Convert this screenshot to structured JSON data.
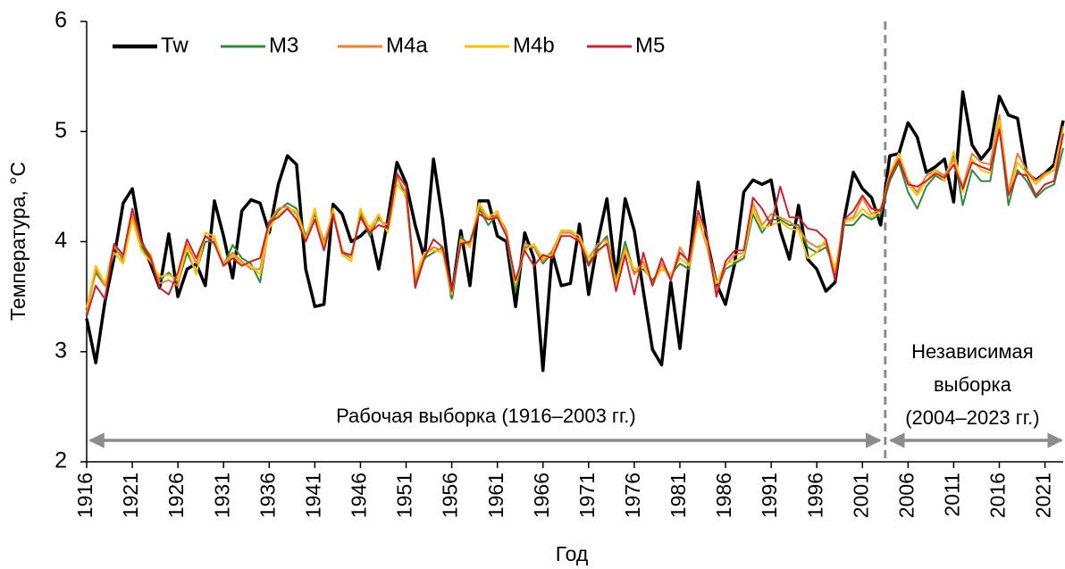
{
  "chart_data": {
    "type": "line",
    "y_label": "Температура, °C",
    "x_label": "Год",
    "x": [
      1916,
      1917,
      1918,
      1919,
      1920,
      1921,
      1922,
      1923,
      1924,
      1925,
      1926,
      1927,
      1928,
      1929,
      1930,
      1931,
      1932,
      1933,
      1934,
      1935,
      1936,
      1937,
      1938,
      1939,
      1940,
      1941,
      1942,
      1943,
      1944,
      1945,
      1946,
      1947,
      1948,
      1949,
      1950,
      1951,
      1952,
      1953,
      1954,
      1955,
      1956,
      1957,
      1958,
      1959,
      1960,
      1961,
      1962,
      1963,
      1964,
      1965,
      1966,
      1967,
      1968,
      1969,
      1970,
      1971,
      1972,
      1973,
      1974,
      1975,
      1976,
      1977,
      1978,
      1979,
      1980,
      1981,
      1982,
      1983,
      1984,
      1985,
      1986,
      1987,
      1988,
      1989,
      1990,
      1991,
      1992,
      1993,
      1994,
      1995,
      1996,
      1997,
      1998,
      1999,
      2000,
      2001,
      2002,
      2003,
      2004,
      2005,
      2006,
      2007,
      2008,
      2009,
      2010,
      2011,
      2012,
      2013,
      2014,
      2015,
      2016,
      2017,
      2018,
      2019,
      2020,
      2021,
      2022,
      2023
    ],
    "series": [
      {
        "name": "Tw",
        "color": "#000000",
        "width": 3.5,
        "values": [
          3.3,
          2.9,
          3.45,
          3.85,
          4.35,
          4.48,
          4.0,
          3.8,
          3.58,
          4.07,
          3.5,
          3.75,
          3.8,
          3.6,
          4.37,
          4.05,
          3.67,
          4.28,
          4.38,
          4.35,
          4.08,
          4.52,
          4.78,
          4.7,
          3.75,
          3.41,
          3.43,
          4.34,
          4.25,
          4.0,
          4.05,
          4.13,
          3.75,
          4.2,
          4.72,
          4.53,
          4.15,
          3.85,
          4.75,
          4.2,
          3.5,
          4.1,
          3.6,
          4.37,
          4.37,
          4.05,
          4.0,
          3.41,
          4.08,
          3.85,
          2.83,
          3.9,
          3.6,
          3.62,
          4.16,
          3.52,
          4.0,
          4.39,
          3.67,
          4.39,
          4.1,
          3.55,
          3.02,
          2.88,
          3.63,
          3.03,
          3.8,
          4.54,
          4.0,
          3.62,
          3.43,
          3.8,
          4.45,
          4.56,
          4.52,
          4.56,
          4.1,
          3.84,
          4.33,
          3.84,
          3.75,
          3.55,
          3.63,
          4.2,
          4.63,
          4.48,
          4.4,
          4.15,
          4.78,
          4.8,
          5.08,
          4.95,
          4.63,
          4.68,
          4.75,
          4.36,
          5.36,
          4.88,
          4.75,
          4.85,
          5.32,
          5.15,
          5.12,
          4.62,
          4.56,
          4.62,
          4.7,
          5.1
        ]
      },
      {
        "name": "M3",
        "color": "#2e8b3a",
        "width": 2,
        "values": [
          3.4,
          3.72,
          3.6,
          3.95,
          3.85,
          4.22,
          3.95,
          3.85,
          3.65,
          3.72,
          3.62,
          3.9,
          3.72,
          4.0,
          4.0,
          3.78,
          3.97,
          3.85,
          3.8,
          3.63,
          4.15,
          4.28,
          4.35,
          4.3,
          4.05,
          4.25,
          4.0,
          4.25,
          3.9,
          3.85,
          4.25,
          4.05,
          4.22,
          4.1,
          4.6,
          4.4,
          3.62,
          3.85,
          3.9,
          3.95,
          3.48,
          4.05,
          3.95,
          4.3,
          4.15,
          4.25,
          4.05,
          3.55,
          3.95,
          3.95,
          3.8,
          3.9,
          4.1,
          4.1,
          4.05,
          3.8,
          3.95,
          4.05,
          3.65,
          4.0,
          3.72,
          3.75,
          3.65,
          3.75,
          3.7,
          3.8,
          3.75,
          4.2,
          3.95,
          3.55,
          3.75,
          3.8,
          3.85,
          4.25,
          4.08,
          4.2,
          4.2,
          4.15,
          4.15,
          3.95,
          3.9,
          3.95,
          3.75,
          4.15,
          4.15,
          4.25,
          4.2,
          4.25,
          4.55,
          4.72,
          4.45,
          4.3,
          4.5,
          4.6,
          4.55,
          4.8,
          4.33,
          4.65,
          4.55,
          4.55,
          5.05,
          4.33,
          4.65,
          4.55,
          4.4,
          4.48,
          4.52,
          4.85
        ]
      },
      {
        "name": "M4a",
        "color": "#f08030",
        "width": 2,
        "values": [
          3.35,
          3.75,
          3.6,
          3.97,
          3.82,
          4.25,
          3.98,
          3.88,
          3.62,
          3.65,
          3.6,
          3.98,
          3.8,
          4.05,
          4.02,
          3.8,
          3.9,
          3.82,
          3.75,
          3.75,
          4.18,
          4.3,
          4.32,
          4.25,
          4.0,
          4.28,
          3.98,
          4.28,
          3.92,
          3.85,
          4.28,
          4.1,
          4.2,
          4.15,
          4.58,
          4.45,
          3.65,
          3.88,
          3.95,
          3.92,
          3.55,
          4.0,
          3.98,
          4.32,
          4.2,
          4.25,
          4.1,
          3.6,
          3.98,
          3.95,
          3.82,
          3.92,
          4.08,
          4.08,
          4.02,
          3.85,
          3.98,
          4.02,
          3.62,
          3.95,
          3.7,
          3.82,
          3.6,
          3.8,
          3.65,
          3.95,
          3.8,
          4.22,
          3.95,
          3.55,
          3.78,
          3.88,
          3.9,
          4.35,
          4.15,
          4.25,
          4.22,
          4.18,
          4.12,
          4.0,
          3.95,
          3.98,
          3.72,
          4.2,
          4.22,
          4.4,
          4.25,
          4.3,
          4.6,
          4.8,
          4.55,
          4.45,
          4.6,
          4.65,
          4.6,
          4.75,
          4.5,
          4.8,
          4.72,
          4.7,
          5.15,
          4.45,
          4.8,
          4.65,
          4.55,
          4.62,
          4.65,
          5.05
        ]
      },
      {
        "name": "M4b",
        "color": "#ffc000",
        "width": 2,
        "values": [
          3.4,
          3.78,
          3.62,
          3.9,
          3.8,
          4.2,
          3.92,
          3.82,
          3.68,
          3.7,
          3.65,
          3.95,
          3.7,
          4.08,
          4.05,
          3.78,
          3.88,
          3.8,
          3.78,
          3.7,
          4.12,
          4.25,
          4.3,
          4.28,
          4.02,
          4.3,
          3.95,
          4.3,
          3.88,
          3.82,
          4.3,
          4.12,
          4.25,
          4.08,
          4.52,
          4.42,
          3.68,
          3.9,
          3.92,
          3.9,
          3.52,
          4.02,
          3.95,
          4.35,
          4.22,
          4.28,
          4.05,
          3.62,
          3.92,
          3.98,
          3.85,
          3.88,
          4.1,
          4.1,
          4.05,
          3.85,
          3.9,
          4.0,
          3.62,
          3.92,
          3.75,
          3.78,
          3.62,
          3.75,
          3.7,
          3.85,
          3.78,
          4.18,
          3.98,
          3.62,
          3.8,
          3.82,
          3.88,
          4.3,
          4.12,
          4.15,
          4.18,
          4.12,
          4.1,
          3.85,
          3.9,
          4.02,
          3.75,
          4.18,
          4.2,
          4.3,
          4.22,
          4.28,
          4.62,
          4.8,
          4.52,
          4.42,
          4.55,
          4.65,
          4.55,
          4.82,
          4.45,
          4.75,
          4.65,
          4.62,
          5.1,
          4.42,
          4.72,
          4.62,
          4.52,
          4.6,
          4.65,
          5.0
        ]
      },
      {
        "name": "M5",
        "color": "#d0202a",
        "width": 2,
        "values": [
          3.32,
          3.6,
          3.48,
          3.98,
          3.88,
          4.3,
          4.0,
          3.85,
          3.58,
          3.52,
          3.72,
          4.02,
          3.85,
          4.05,
          3.98,
          3.78,
          3.85,
          3.78,
          3.82,
          3.85,
          4.18,
          4.22,
          4.3,
          4.2,
          4.0,
          4.2,
          3.92,
          4.25,
          3.9,
          3.88,
          4.22,
          4.08,
          4.15,
          4.12,
          4.62,
          4.5,
          3.58,
          3.85,
          4.02,
          3.95,
          3.55,
          3.98,
          4.0,
          4.25,
          4.2,
          4.22,
          4.05,
          3.65,
          3.92,
          3.78,
          3.88,
          3.85,
          4.05,
          4.05,
          4.0,
          3.78,
          3.92,
          3.98,
          3.55,
          3.88,
          3.52,
          3.9,
          3.6,
          3.85,
          3.65,
          3.9,
          3.82,
          4.28,
          4.05,
          3.5,
          3.82,
          3.92,
          3.92,
          4.4,
          4.3,
          4.15,
          4.5,
          4.22,
          4.22,
          4.12,
          4.1,
          4.02,
          3.65,
          4.2,
          4.28,
          4.42,
          4.3,
          4.28,
          4.58,
          4.75,
          4.52,
          4.5,
          4.55,
          4.62,
          4.58,
          4.7,
          4.48,
          4.72,
          4.68,
          4.65,
          5.02,
          4.42,
          4.62,
          4.6,
          4.42,
          4.52,
          4.55,
          4.98
        ]
      }
    ],
    "xlim": [
      1916,
      2023
    ],
    "xticks": [
      1916,
      1921,
      1926,
      1931,
      1936,
      1941,
      1946,
      1951,
      1956,
      1961,
      1966,
      1971,
      1976,
      1981,
      1986,
      1991,
      1996,
      2001,
      2006,
      2011,
      2016,
      2021
    ],
    "ylim": [
      2,
      6
    ],
    "yticks": [
      2,
      3,
      4,
      5,
      6
    ],
    "legend": "top-left",
    "split_year": 2003.5,
    "annotations": {
      "working": "Рабочая выборка (1916–2003 гг.)",
      "independent": [
        "Независимая",
        "выборка",
        "(2004–2023 гг.)"
      ]
    }
  }
}
